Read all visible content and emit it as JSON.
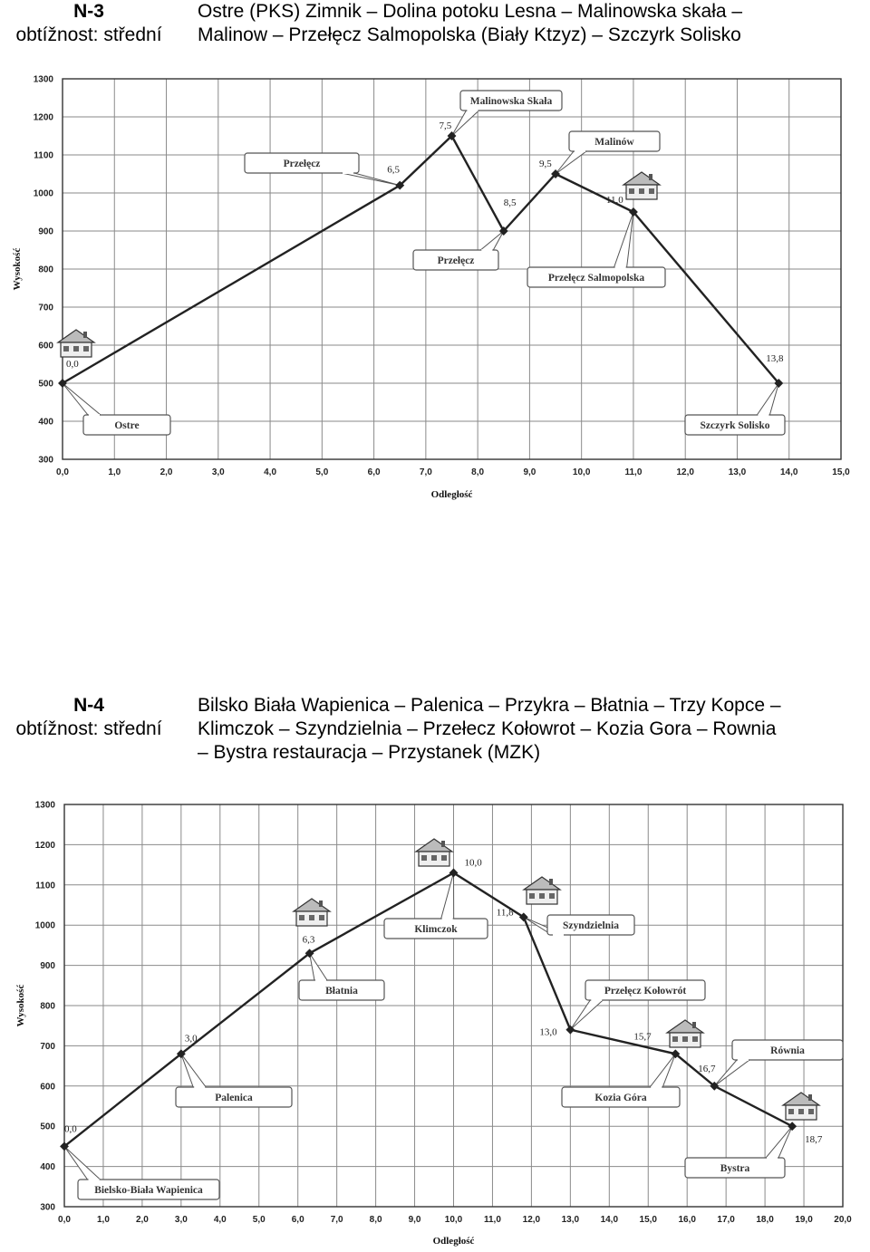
{
  "sections": [
    {
      "code": "N-3",
      "difficulty": "obtížnost: střední",
      "route_lines": [
        "Ostre (PKS) Zimnik – Dolina potoku Lesna – Malinowska skała –",
        "Malinow – Przełęcz Salmopolska (Biały Ktzyz) – Szczyrk Solisko"
      ]
    },
    {
      "code": "N-4",
      "difficulty": "obtížnost: střední",
      "route_lines": [
        "Bilsko Biała Wapienica – Palenica – Przykra – Błatnia – Trzy Kopce –",
        "Klimczok – Szyndzielnia – Przełecz Kołowrot – Kozia Gora – Rownia",
        "– Bystra restauracja – Przystanek (MZK)"
      ]
    }
  ],
  "chart_data": [
    {
      "type": "line",
      "xlabel": "Odległość",
      "ylabel": "Wysokość",
      "xlim": [
        0,
        15
      ],
      "ylim": [
        300,
        1300
      ],
      "xticks": [
        "0,0",
        "1,0",
        "2,0",
        "3,0",
        "4,0",
        "5,0",
        "6,0",
        "7,0",
        "8,0",
        "9,0",
        "10,0",
        "11,0",
        "12,0",
        "13,0",
        "14,0",
        "15,0"
      ],
      "yticks": [
        "300",
        "400",
        "500",
        "600",
        "700",
        "800",
        "900",
        "1000",
        "1100",
        "1200",
        "1300"
      ],
      "grid": true,
      "color": "#222222",
      "points": [
        {
          "x": 0.0,
          "y": 500,
          "label": "0,0"
        },
        {
          "x": 6.5,
          "y": 1020,
          "label": "6,5"
        },
        {
          "x": 7.5,
          "y": 1150,
          "label": "7,5"
        },
        {
          "x": 8.5,
          "y": 900,
          "label": "8,5"
        },
        {
          "x": 9.5,
          "y": 1050,
          "label": "9,5"
        },
        {
          "x": 11.0,
          "y": 950,
          "label": "11,0"
        },
        {
          "x": 13.8,
          "y": 500,
          "label": "13,8"
        }
      ],
      "callouts": [
        {
          "text": "Ostre",
          "point": 0
        },
        {
          "text": "Przełęcz",
          "point": 1
        },
        {
          "text": "Malinowska Skała",
          "point": 2
        },
        {
          "text": "Przełęcz",
          "point": 3
        },
        {
          "text": "Malinów",
          "point": 4
        },
        {
          "text": "Przełęcz Salmopolska",
          "point": 5
        },
        {
          "text": "Szczyrk Solisko",
          "point": 6
        }
      ],
      "cabins": [
        "house-icon",
        "house-icon"
      ]
    },
    {
      "type": "line",
      "xlabel": "Odległość",
      "ylabel": "Wysokość",
      "xlim": [
        0,
        20
      ],
      "ylim": [
        300,
        1300
      ],
      "xticks": [
        "0,0",
        "1,0",
        "2,0",
        "3,0",
        "4,0",
        "5,0",
        "6,0",
        "7,0",
        "8,0",
        "9,0",
        "10,0",
        "11,0",
        "12,0",
        "13,0",
        "14,0",
        "15,0",
        "16,0",
        "17,0",
        "18,0",
        "19,0",
        "20,0"
      ],
      "yticks": [
        "300",
        "400",
        "500",
        "600",
        "700",
        "800",
        "900",
        "1000",
        "1100",
        "1200",
        "1300"
      ],
      "grid": true,
      "color": "#222222",
      "points": [
        {
          "x": 0.0,
          "y": 450,
          "label": "0,0"
        },
        {
          "x": 3.0,
          "y": 680,
          "label": "3,0"
        },
        {
          "x": 6.3,
          "y": 930,
          "label": "6,3"
        },
        {
          "x": 10.0,
          "y": 1130,
          "label": "10,0"
        },
        {
          "x": 11.8,
          "y": 1020,
          "label": "11,8"
        },
        {
          "x": 13.0,
          "y": 740,
          "label": "13,0"
        },
        {
          "x": 15.7,
          "y": 680,
          "label": "15,7"
        },
        {
          "x": 16.7,
          "y": 600,
          "label": "16,7"
        },
        {
          "x": 18.7,
          "y": 500,
          "label": "18,7"
        }
      ],
      "callouts": [
        {
          "text": "Bielsko-Biała Wapienica",
          "point": 0
        },
        {
          "text": "Palenica",
          "point": 1
        },
        {
          "text": "Błatnia",
          "point": 2
        },
        {
          "text": "Klimczok",
          "point": 3
        },
        {
          "text": "Szyndzielnia",
          "point": 4
        },
        {
          "text": "Przełęcz Kołowrót",
          "point": 5
        },
        {
          "text": "Kozia Góra",
          "point": 6
        },
        {
          "text": "Równia",
          "point": 7
        },
        {
          "text": "Bystra",
          "point": 8
        }
      ],
      "cabins": [
        "house-icon",
        "house-icon",
        "house-icon",
        "house-icon",
        "house-icon"
      ]
    }
  ]
}
